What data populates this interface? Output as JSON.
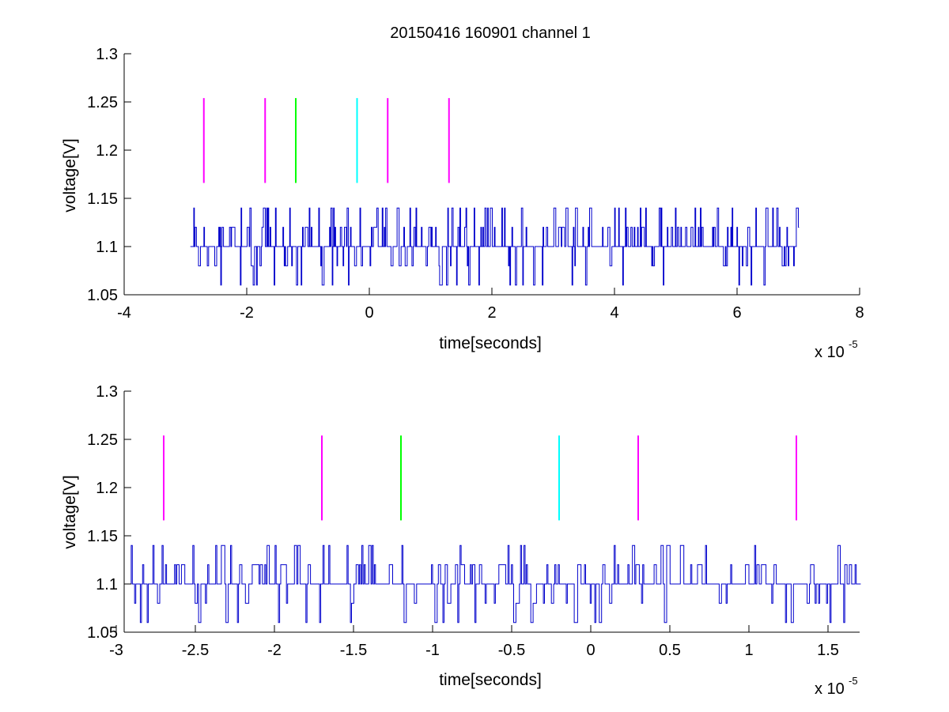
{
  "figure": {
    "title": "20150416 160901 channel 1"
  },
  "colors": {
    "signal": "#0000cc",
    "magenta": "#ff00ff",
    "green": "#00ff00",
    "cyan": "#00ffff",
    "axis": "#000000"
  },
  "chart_data": [
    {
      "type": "line",
      "title": "20150416 160901 channel 1",
      "xlabel": "time[seconds]",
      "ylabel": "voltage[V]",
      "x_multiplier": "x 10",
      "x_exponent": "-5",
      "xlim": [
        -4e-05,
        8e-05
      ],
      "ylim": [
        1.05,
        1.3
      ],
      "xticks": [
        -4e-05,
        -2e-05,
        0,
        2e-05,
        4e-05,
        6e-05,
        8e-05
      ],
      "xtick_labels": [
        "-4",
        "-2",
        "0",
        "2",
        "4",
        "6",
        "8"
      ],
      "yticks": [
        1.05,
        1.1,
        1.15,
        1.2,
        1.25,
        1.3
      ],
      "ytick_labels": [
        "1.05",
        "1.1",
        "1.15",
        "1.2",
        "1.25",
        "1.3"
      ],
      "grid": false,
      "series": [
        {
          "x_range": [
            -2.92e-05,
            7e-05
          ],
          "baseline": 1.1,
          "levels": [
            1.06,
            1.08,
            1.12,
            1.14
          ],
          "color": "signal"
        }
      ],
      "markers": [
        {
          "x": -2.7e-05,
          "y_range": [
            1.166,
            1.254
          ],
          "color": "magenta"
        },
        {
          "x": -1.7e-05,
          "y_range": [
            1.166,
            1.254
          ],
          "color": "magenta"
        },
        {
          "x": -1.2e-05,
          "y_range": [
            1.166,
            1.254
          ],
          "color": "green"
        },
        {
          "x": -2e-06,
          "y_range": [
            1.166,
            1.254
          ],
          "color": "cyan"
        },
        {
          "x": 3e-06,
          "y_range": [
            1.166,
            1.254
          ],
          "color": "magenta"
        },
        {
          "x": 1.3e-05,
          "y_range": [
            1.166,
            1.254
          ],
          "color": "magenta"
        }
      ]
    },
    {
      "type": "line",
      "xlabel": "time[seconds]",
      "ylabel": "voltage[V]",
      "x_multiplier": "x 10",
      "x_exponent": "-5",
      "xlim": [
        -2.95e-05,
        1.7e-05
      ],
      "ylim": [
        1.05,
        1.3
      ],
      "xticks": [
        -3e-05,
        -2.5e-05,
        -2e-05,
        -1.5e-05,
        -1e-05,
        -5e-06,
        0,
        5e-06,
        1e-05,
        1.5e-05
      ],
      "xtick_labels": [
        "-3",
        "-2.5",
        "-2",
        "-1.5",
        "-1",
        "-0.5",
        "0",
        "0.5",
        "1",
        "1.5"
      ],
      "yticks": [
        1.05,
        1.1,
        1.15,
        1.2,
        1.25,
        1.3
      ],
      "ytick_labels": [
        "1.05",
        "1.1",
        "1.15",
        "1.2",
        "1.25",
        "1.3"
      ],
      "grid": false,
      "series": [
        {
          "x_range": [
            -2.92e-05,
            1.7e-05
          ],
          "baseline": 1.1,
          "levels": [
            1.06,
            1.08,
            1.12,
            1.14
          ],
          "color": "signal"
        }
      ],
      "markers": [
        {
          "x": -2.7e-05,
          "y_range": [
            1.166,
            1.254
          ],
          "color": "magenta"
        },
        {
          "x": -1.7e-05,
          "y_range": [
            1.166,
            1.254
          ],
          "color": "magenta"
        },
        {
          "x": -1.2e-05,
          "y_range": [
            1.166,
            1.254
          ],
          "color": "green"
        },
        {
          "x": -2e-06,
          "y_range": [
            1.166,
            1.254
          ],
          "color": "cyan"
        },
        {
          "x": 3e-06,
          "y_range": [
            1.166,
            1.254
          ],
          "color": "magenta"
        },
        {
          "x": 1.3e-05,
          "y_range": [
            1.166,
            1.254
          ],
          "color": "magenta"
        }
      ]
    }
  ]
}
